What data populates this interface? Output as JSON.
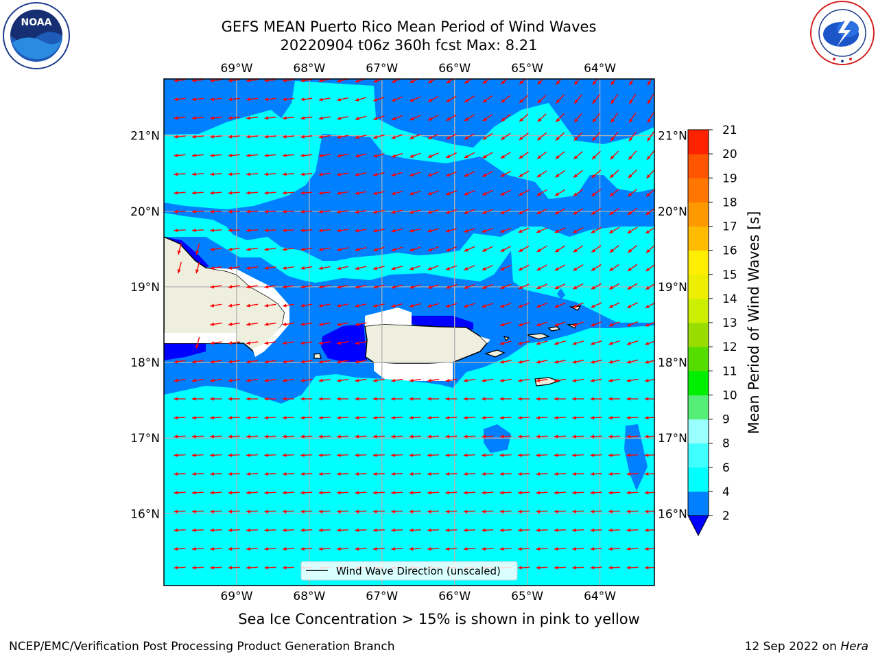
{
  "header": {
    "title_line1": "GEFS MEAN Puerto Rico Mean Period of Wind Waves",
    "title_line2": "20220904 t06z 360h fcst   Max: 8.21"
  },
  "logos": {
    "left": "NOAA",
    "right": "NATIONAL WEATHER SERVICE"
  },
  "map": {
    "lon_labels": [
      "69°W",
      "68°W",
      "67°W",
      "66°W",
      "65°W",
      "64°W"
    ],
    "lat_labels": [
      "21°N",
      "20°N",
      "19°N",
      "18°N",
      "17°N",
      "16°N"
    ],
    "lon_values": [
      -69,
      -68,
      -67,
      -66,
      -65,
      -64
    ],
    "lat_values": [
      21,
      20,
      19,
      18,
      17,
      16
    ],
    "extent": {
      "lon": [
        -70,
        -63.25
      ],
      "lat": [
        15.05,
        21.75
      ]
    },
    "legend_label": "Wind Wave Direction (unscaled)",
    "colors": {
      "ocean_light": "#00ffff",
      "ocean_mid": "#0080ff",
      "ocean_deep": "#0000ff",
      "land": "#efefdf",
      "arrow": "#ff0000",
      "grid": "#b0b0b0"
    }
  },
  "colorbar": {
    "label": "Mean Period of Wind Waves [s]",
    "tick_labels": [
      "2",
      "4",
      "6",
      "8",
      "9",
      "10",
      "11",
      "12",
      "13",
      "14",
      "15",
      "16",
      "17",
      "18",
      "19",
      "20",
      "21"
    ],
    "levels": [
      2,
      4,
      6,
      8,
      9,
      10,
      11,
      12,
      13,
      14,
      15,
      16,
      17,
      18,
      19,
      20,
      21
    ],
    "colors": [
      "#0080ff",
      "#00ffff",
      "#40ffff",
      "#99ffff",
      "#55ee77",
      "#00ee00",
      "#55dd00",
      "#99dd00",
      "#ccee00",
      "#eeee00",
      "#ffee00",
      "#ffbb00",
      "#ff9900",
      "#ff7700",
      "#ff5500",
      "#ff2200"
    ],
    "under_color": "#0000ff",
    "over_color": "#ff0000"
  },
  "note": "Sea Ice Concentration > 15% is shown in pink to yellow",
  "footer": {
    "left": "NCEP/EMC/Verification Post Processing Product Generation Branch",
    "right_date": "12 Sep 2022 on ",
    "right_host": "Hera"
  },
  "chart_data": {
    "type": "heatmap",
    "title": "GEFS MEAN Puerto Rico Mean Period of Wind Waves",
    "subtitle": "20220904 t06z 360h fcst   Max: 8.21",
    "max_value": 8.21,
    "colorbar_label": "Mean Period of Wind Waves [s]",
    "colorbar_range": [
      2,
      21
    ],
    "xlim": [
      "70°W",
      "63.25°W"
    ],
    "ylim": [
      "15.05°N",
      "21.75°N"
    ],
    "grid": true,
    "legend": "bottom-center",
    "vector_field": "Wind Wave Direction (unscaled)"
  }
}
